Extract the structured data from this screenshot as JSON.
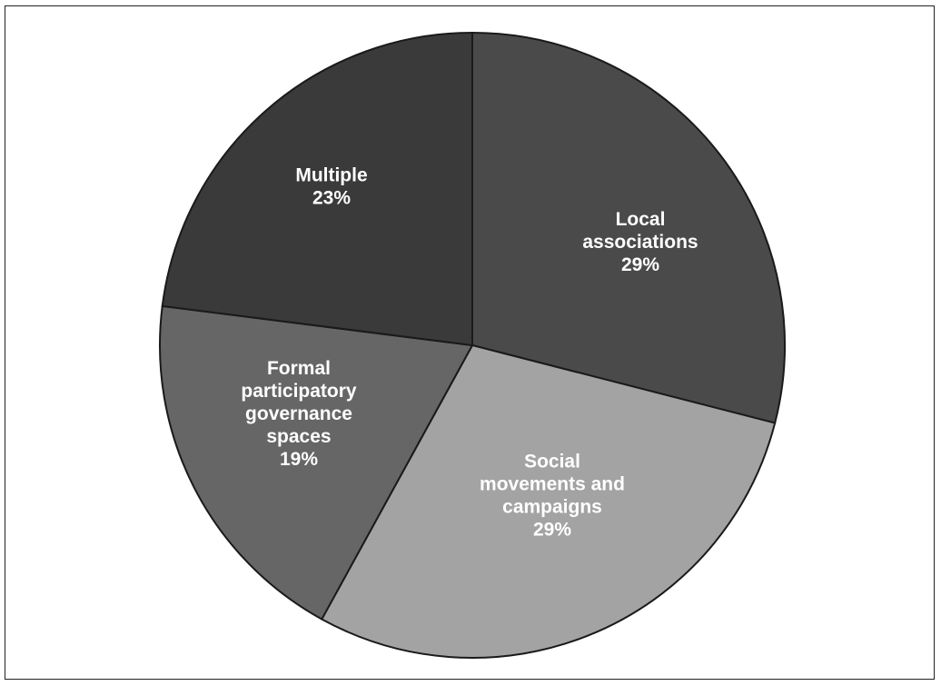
{
  "chart_data": {
    "type": "pie",
    "title": "",
    "start_angle_deg": 0,
    "direction": "clockwise",
    "slices": [
      {
        "label_lines": [
          "Local",
          "associations"
        ],
        "value_label": "29%",
        "value": 29,
        "color": "#4a4a4a"
      },
      {
        "label_lines": [
          "Social",
          "movements and",
          "campaigns"
        ],
        "value_label": "29%",
        "value": 29,
        "color": "#a3a3a3"
      },
      {
        "label_lines": [
          "Formal",
          "participatory",
          "governance",
          "spaces"
        ],
        "value_label": "19%",
        "value": 19,
        "color": "#666666"
      },
      {
        "label_lines": [
          "Multiple"
        ],
        "value_label": "23%",
        "value": 23,
        "color": "#3a3a3a"
      }
    ],
    "stroke_color": "#1a1a1a"
  }
}
